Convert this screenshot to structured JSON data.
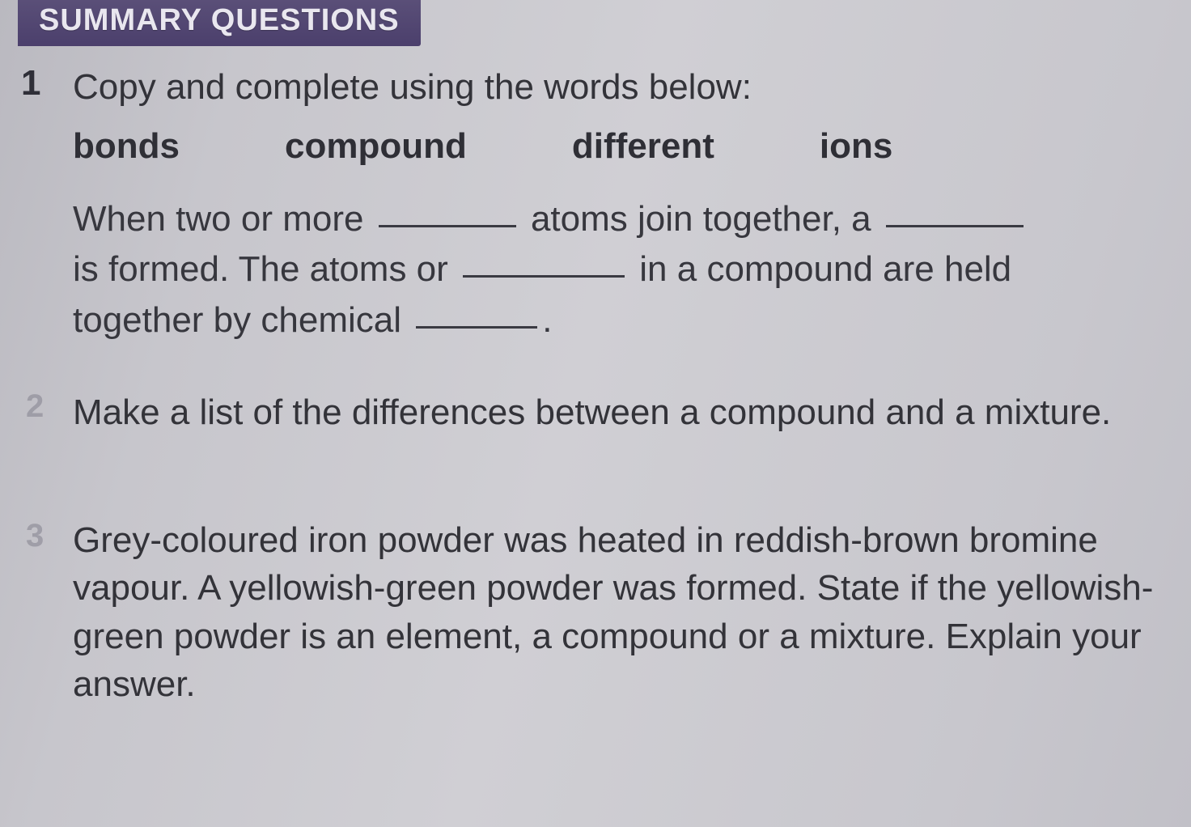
{
  "header": {
    "title": "SUMMARY QUESTIONS"
  },
  "q1": {
    "number": "1",
    "prompt": "Copy and complete using the words below:",
    "words": [
      "bonds",
      "compound",
      "different",
      "ions"
    ],
    "fill": {
      "seg1": "When two or more",
      "seg2": "atoms join together, a",
      "seg3": "is formed. The atoms or",
      "seg4": "in a compound are held",
      "seg5": "together by chemical",
      "seg6": "."
    }
  },
  "q2": {
    "marker": "2",
    "text": "Make a list of the differences between a compound and a mixture."
  },
  "q3": {
    "marker": "3",
    "text": "Grey-coloured iron powder was heated in reddish-brown bromine vapour. A yellowish-green powder was formed. State if the yellowish-green powder is an element, a compound or a mixture. Explain your answer."
  },
  "style": {
    "header_bg": "#4b3f6c",
    "header_text": "#e9e7ef",
    "page_bg": "#c9c8cd",
    "body_text": "#333339",
    "body_fontsize_pt": 33,
    "header_fontsize_pt": 29,
    "bold_weight": 700
  }
}
